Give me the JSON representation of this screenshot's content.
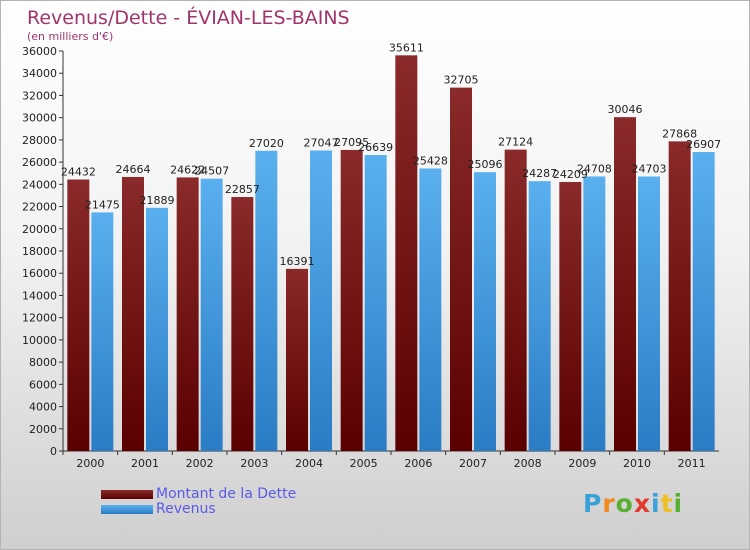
{
  "title": "Revenus/Dette - ÉVIAN-LES-BAINS",
  "subtitle": "(en milliers d'€)",
  "colors": {
    "dette": "#6b0f14",
    "revenus": "#4ea3e6"
  },
  "chart_data": {
    "type": "bar",
    "categories": [
      "2000",
      "2001",
      "2002",
      "2003",
      "2004",
      "2005",
      "2006",
      "2007",
      "2008",
      "2009",
      "2010",
      "2011"
    ],
    "series": [
      {
        "name": "Montant de la Dette",
        "values": [
          24432,
          24664,
          24622,
          22857,
          16391,
          27095,
          35611,
          32705,
          27124,
          24209,
          30046,
          27868
        ],
        "labels": [
          "24432",
          "24664",
          "24622",
          "22857",
          "16391",
          "27095",
          "35611",
          "32705",
          "27124",
          "24209",
          "30046",
          "27868"
        ]
      },
      {
        "name": "Revenus",
        "values": [
          21475,
          21889,
          24507,
          27020,
          27047,
          26639,
          25428,
          25096,
          24287,
          24708,
          24703,
          26907
        ],
        "labels": [
          "21475",
          "21889",
          "24507",
          "27020",
          "27047",
          "26639",
          "25428",
          "25096",
          "24287",
          "24708",
          "24703",
          "26907"
        ]
      }
    ],
    "yticks": [
      0,
      2000,
      4000,
      6000,
      8000,
      10000,
      12000,
      14000,
      16000,
      18000,
      20000,
      22000,
      24000,
      26000,
      28000,
      30000,
      32000,
      34000,
      36000
    ],
    "ylim": [
      0,
      36000
    ],
    "grid": false,
    "legend": "bottom-left"
  },
  "legend": [
    {
      "label": "Montant de la Dette"
    },
    {
      "label": "Revenus"
    }
  ],
  "logo": {
    "letters": [
      "P",
      "r",
      "o",
      "x",
      "i",
      "t",
      "i"
    ],
    "colors": [
      "#3aa0d8",
      "#f08a1c",
      "#58b030",
      "#e03a2c",
      "#3aa0d8",
      "#f0c020",
      "#58b030"
    ]
  }
}
